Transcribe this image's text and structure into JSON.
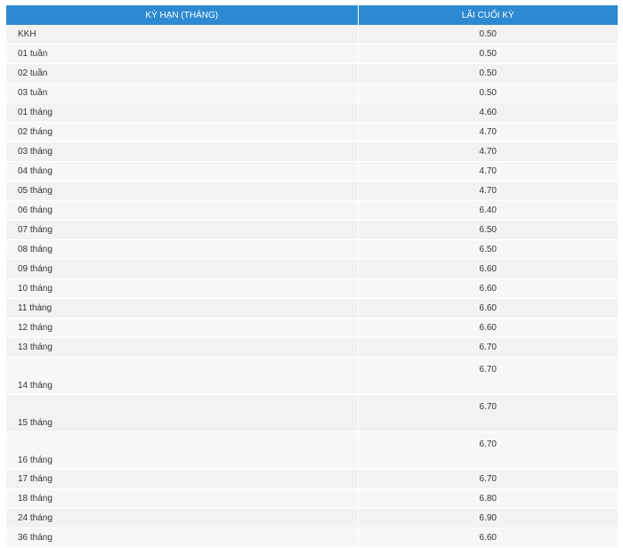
{
  "table": {
    "headers": [
      "KỲ HẠN (THÁNG)",
      "LÃI CUỐI KỲ"
    ],
    "rows": [
      {
        "term": "KKH",
        "rate": "0.50"
      },
      {
        "term": "01 tuần",
        "rate": "0.50"
      },
      {
        "term": "02 tuần",
        "rate": "0.50"
      },
      {
        "term": "03 tuần",
        "rate": "0.50"
      },
      {
        "term": "01 tháng",
        "rate": "4.60"
      },
      {
        "term": "02 tháng",
        "rate": "4.70"
      },
      {
        "term": "03 tháng",
        "rate": "4.70"
      },
      {
        "term": "04 tháng",
        "rate": "4.70"
      },
      {
        "term": "05 tháng",
        "rate": "4.70"
      },
      {
        "term": "06 tháng",
        "rate": "6.40"
      },
      {
        "term": "07 tháng",
        "rate": "6.50"
      },
      {
        "term": "08 tháng",
        "rate": "6.50"
      },
      {
        "term": "09 tháng",
        "rate": "6.60"
      },
      {
        "term": "10 tháng",
        "rate": "6.60"
      },
      {
        "term": "11 tháng",
        "rate": "6.60"
      },
      {
        "term": "12 tháng",
        "rate": "6.60"
      },
      {
        "term": "13 tháng",
        "rate": "6.70"
      },
      {
        "term": "14 tháng",
        "rate": "6.70"
      },
      {
        "term": "15 tháng",
        "rate": "6.70"
      },
      {
        "term": "16 tháng",
        "rate": "6.70"
      },
      {
        "term": "17 tháng",
        "rate": "6.70"
      },
      {
        "term": "18 tháng",
        "rate": "6.80"
      },
      {
        "term": "24 tháng",
        "rate": "6.90"
      },
      {
        "term": "36 tháng",
        "rate": "6.60"
      }
    ]
  }
}
